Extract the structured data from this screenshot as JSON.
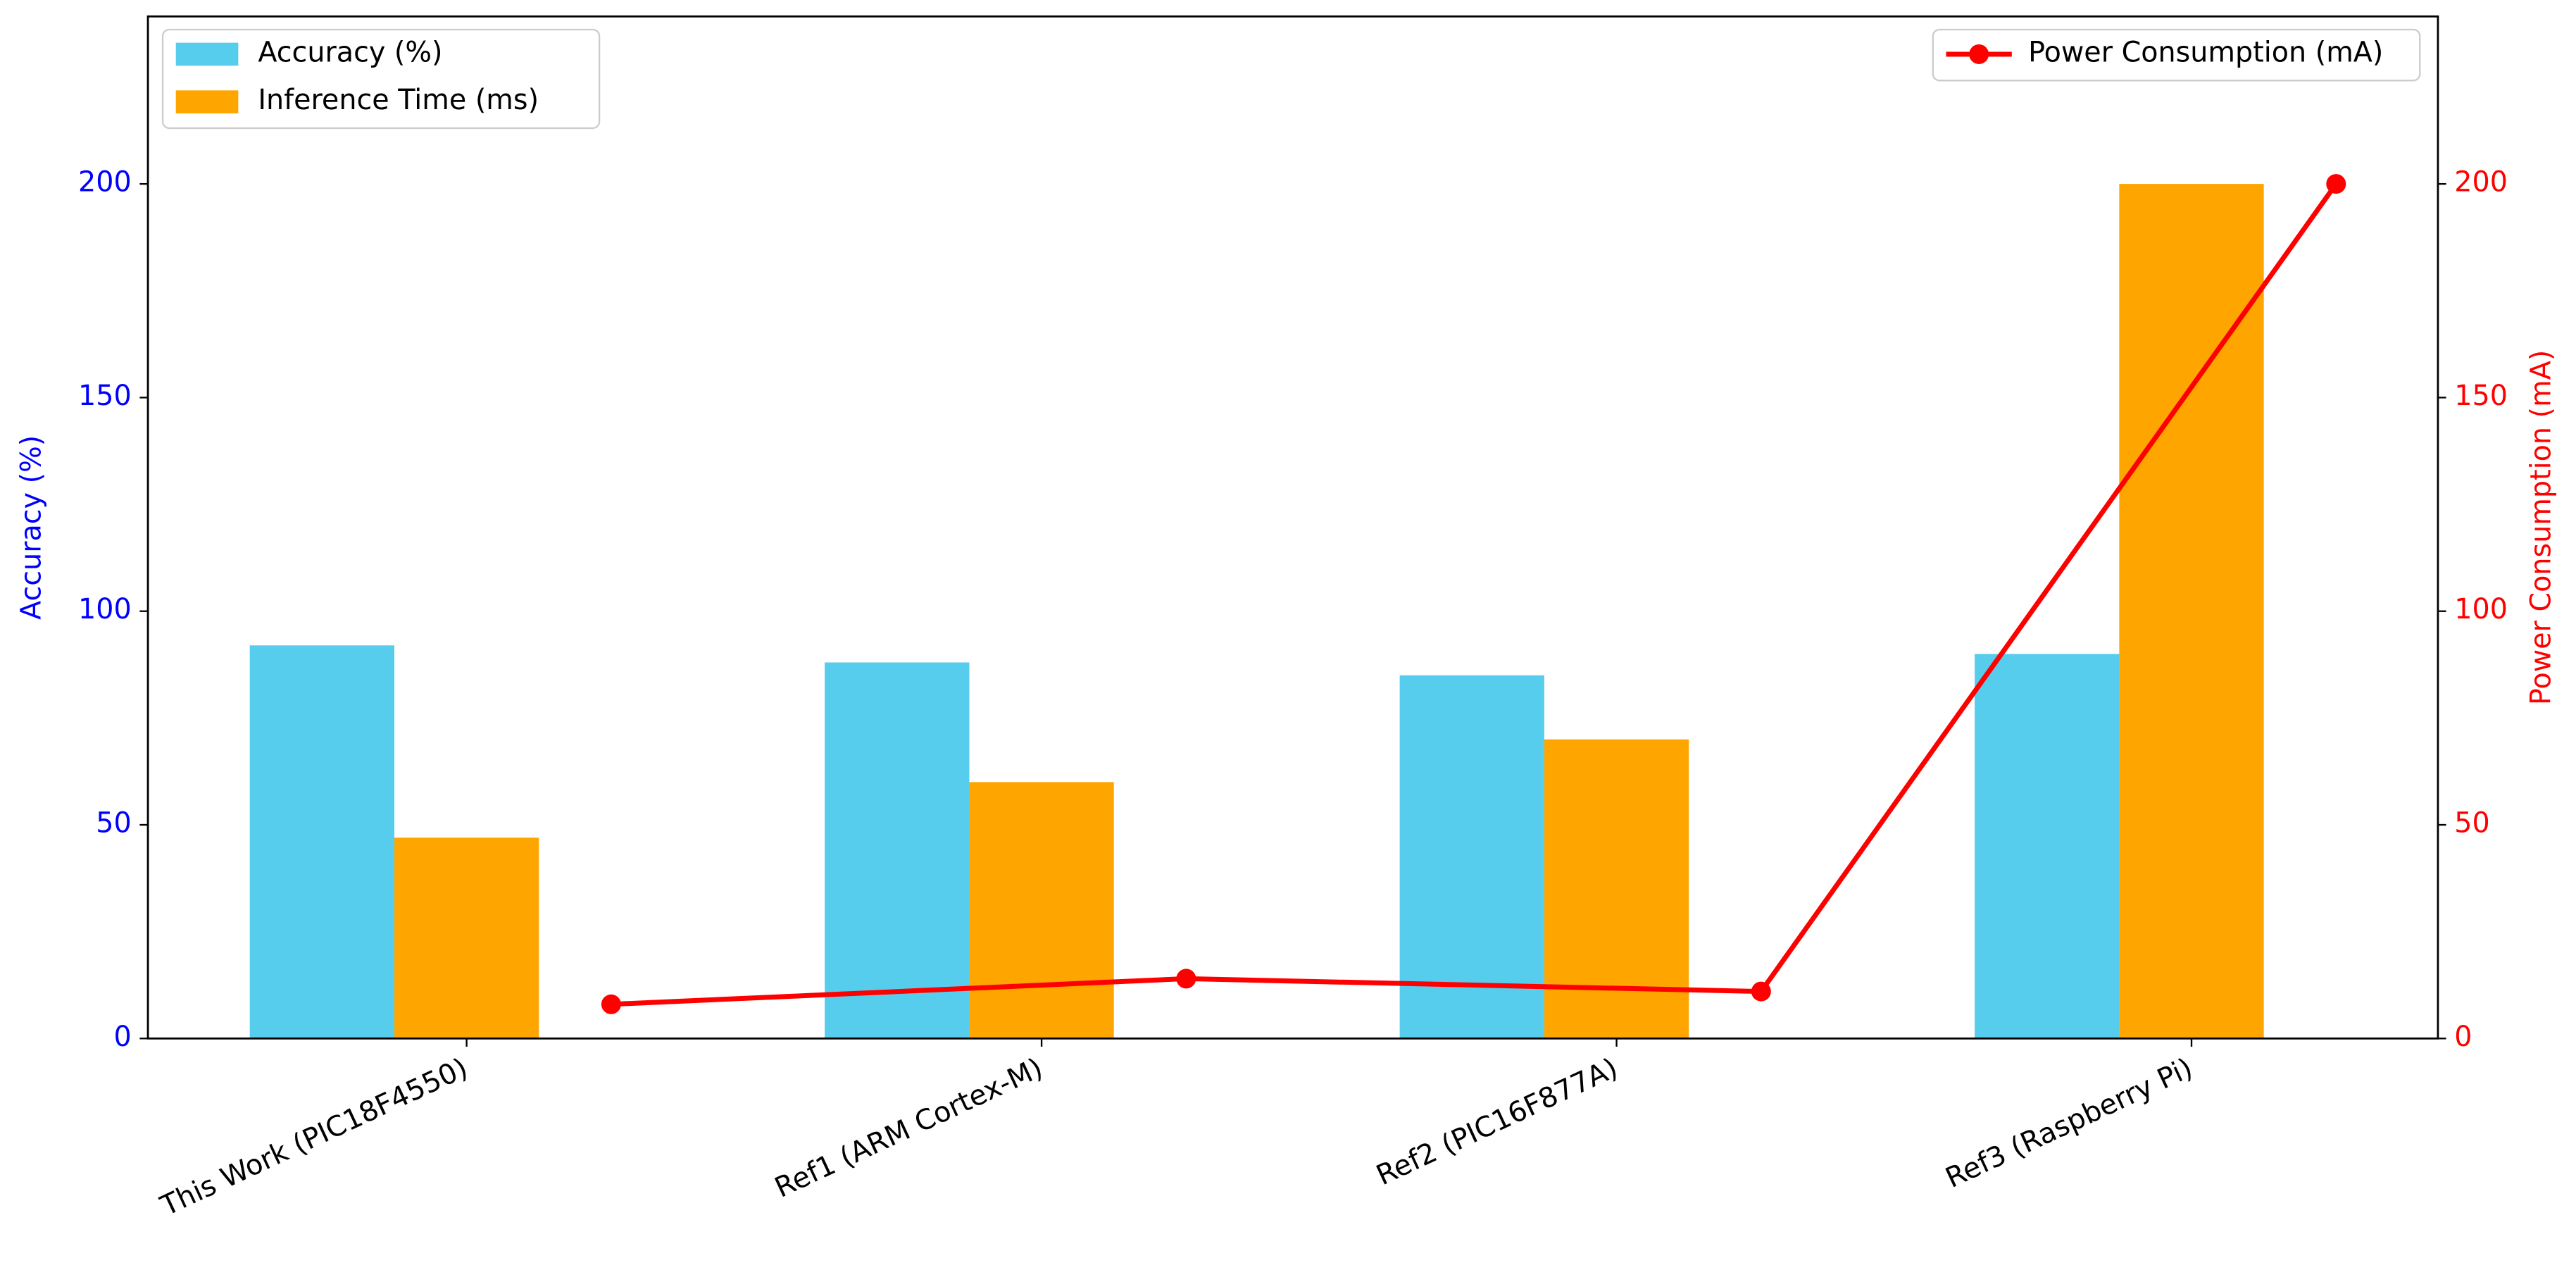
{
  "chart_data": {
    "type": "bar",
    "categories": [
      "This Work (PIC18F4550)",
      "Ref1 (ARM Cortex-M)",
      "Ref2 (PIC16F877A)",
      "Ref3 (Raspberry Pi)"
    ],
    "series": [
      {
        "name": "Accuracy (%)",
        "type": "bar",
        "axis": "y",
        "color": "#56cded",
        "values": [
          92,
          88,
          85,
          90
        ]
      },
      {
        "name": "Inference Time (ms)",
        "type": "bar",
        "axis": "y",
        "color": "#ffa500",
        "values": [
          47,
          60,
          70,
          200
        ]
      },
      {
        "name": "Power Consumption (mA)",
        "type": "line",
        "axis": "y2",
        "color": "#ff0000",
        "values": [
          8,
          14,
          11,
          200
        ]
      }
    ],
    "ylabel": "Accuracy (%)",
    "y2label": "Power Consumption (mA)",
    "ylim": [
      0,
      239.2
    ],
    "yticks": [
      0,
      50,
      100,
      150,
      200
    ],
    "y2lim": [
      0,
      239.2
    ],
    "y2ticks": [
      0,
      50,
      100,
      150,
      200
    ],
    "ycolor": "#0000ff",
    "y2color": "#ff0000",
    "legend": "upper left",
    "legend2": "upper right"
  }
}
